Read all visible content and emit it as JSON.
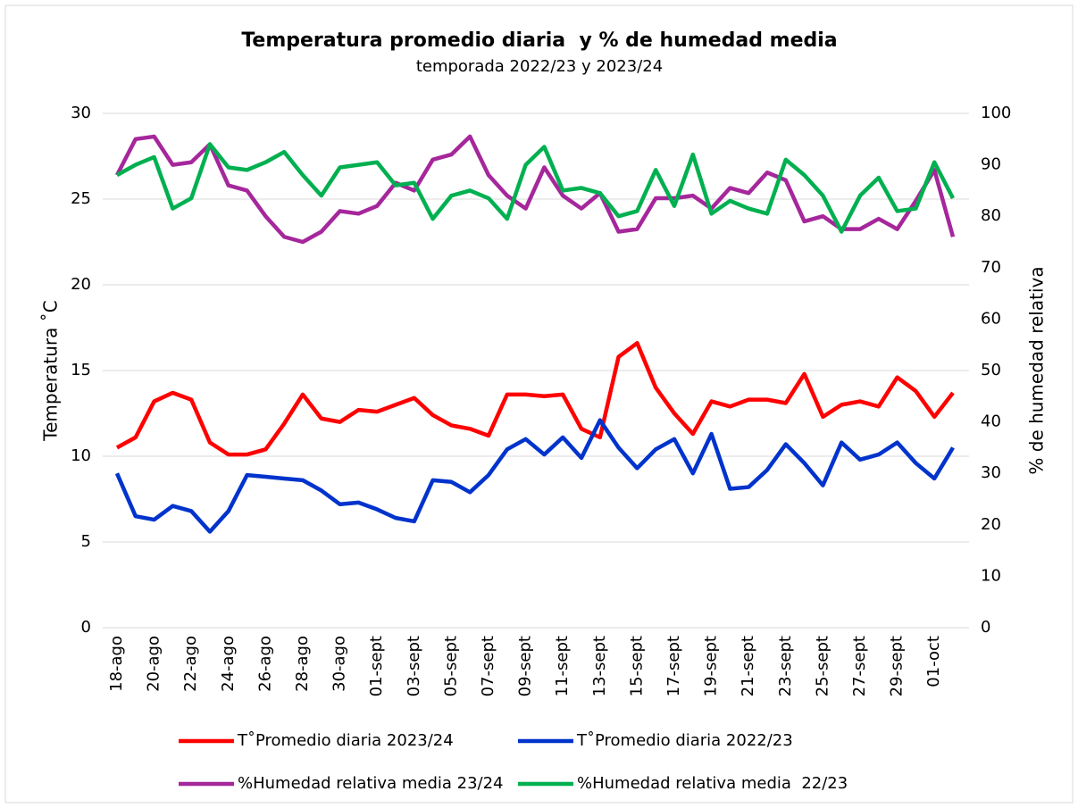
{
  "chart_data": {
    "type": "line",
    "title": "Temperatura promedio diaria  y % de humedad media",
    "subtitle": "temporada 2022/23 y 2023/24",
    "y_label": "Temperatura ˚C",
    "y2_label": "% de humedad relativa",
    "categories": [
      "18-ago",
      null,
      "20-ago",
      null,
      "22-ago",
      null,
      "24-ago",
      null,
      "26-ago",
      null,
      "28-ago",
      null,
      "30-ago",
      null,
      "01-sept",
      null,
      "03-sept",
      null,
      "05-sept",
      null,
      "07-sept",
      null,
      "09-sept",
      null,
      "11-sept",
      null,
      "13-sept",
      null,
      "15-sept",
      null,
      "17-sept",
      null,
      "19-sept",
      null,
      "21-sept",
      null,
      "23-sept",
      null,
      "25-sept",
      null,
      "27-sept",
      null,
      "29-sept",
      null,
      "01-oct",
      null
    ],
    "ylim": [
      0,
      30
    ],
    "yticks": [
      0,
      5,
      10,
      15,
      20,
      25,
      30
    ],
    "y2lim": [
      0,
      100
    ],
    "y2ticks": [
      0,
      10,
      20,
      30,
      40,
      50,
      60,
      70,
      80,
      90,
      100
    ],
    "grid": true,
    "legend": "bottom",
    "series": [
      {
        "name": "T˚Promedio diaria 2023/24",
        "color": "#ff0000",
        "values": [
          10.5,
          11.1,
          13.2,
          13.7,
          13.3,
          10.8,
          10.1,
          10.1,
          10.4,
          11.9,
          13.6,
          12.2,
          12.0,
          12.7,
          12.6,
          13.0,
          13.4,
          12.4,
          11.8,
          11.6,
          11.2,
          13.6,
          13.6,
          13.5,
          13.6,
          11.6,
          11.1,
          15.8,
          16.6,
          14.0,
          12.5,
          11.3,
          13.2,
          12.9,
          13.3,
          13.3,
          13.1,
          14.8,
          12.3,
          13.0,
          13.2,
          12.9,
          14.6,
          13.8,
          12.3,
          13.7
        ]
      },
      {
        "name": "T˚Promedio diaria 2022/23",
        "color": "#0033cc",
        "values": [
          9.0,
          6.5,
          6.3,
          7.1,
          6.8,
          5.6,
          6.8,
          8.9,
          8.8,
          8.7,
          8.6,
          8.0,
          7.2,
          7.3,
          6.9,
          6.4,
          6.2,
          8.6,
          8.5,
          7.9,
          8.9,
          10.4,
          11.0,
          10.1,
          11.1,
          9.9,
          12.1,
          10.5,
          9.3,
          10.4,
          11.0,
          9.0,
          11.3,
          8.1,
          8.2,
          9.2,
          10.7,
          9.6,
          8.3,
          10.8,
          9.8,
          10.1,
          10.8,
          9.6,
          8.7,
          10.5
        ]
      },
      {
        "name": "%Humedad relativa media 23/24",
        "color": "#a5279b",
        "axis": "y2",
        "values": [
          88,
          95,
          95.5,
          90,
          90.5,
          94,
          86,
          85,
          80,
          76,
          75,
          77,
          81,
          80.5,
          82,
          86.5,
          85,
          91,
          92,
          95.5,
          88,
          84,
          81.5,
          89.5,
          84,
          81.5,
          84.5,
          77,
          77.5,
          83.5,
          83.5,
          84,
          81.5,
          85.5,
          84.5,
          88.5,
          87,
          79,
          80,
          77.5,
          77.5,
          79.5,
          77.5,
          83,
          89,
          76
        ]
      },
      {
        "name": "%Humedad relativa media  22/23",
        "color": "#00b050",
        "axis": "y2",
        "values": [
          88,
          90,
          91.5,
          81.5,
          83.5,
          94,
          89.5,
          89,
          90.5,
          92.5,
          88,
          84,
          89.5,
          90,
          90.5,
          86,
          86.5,
          79.5,
          84,
          85,
          83.5,
          79.5,
          90,
          93.5,
          85,
          85.5,
          84.5,
          80,
          81,
          89,
          82,
          92,
          80.5,
          83,
          81.5,
          80.5,
          91,
          88,
          84,
          77,
          84,
          87.5,
          81,
          81.5,
          90.5,
          83.5
        ]
      }
    ]
  }
}
